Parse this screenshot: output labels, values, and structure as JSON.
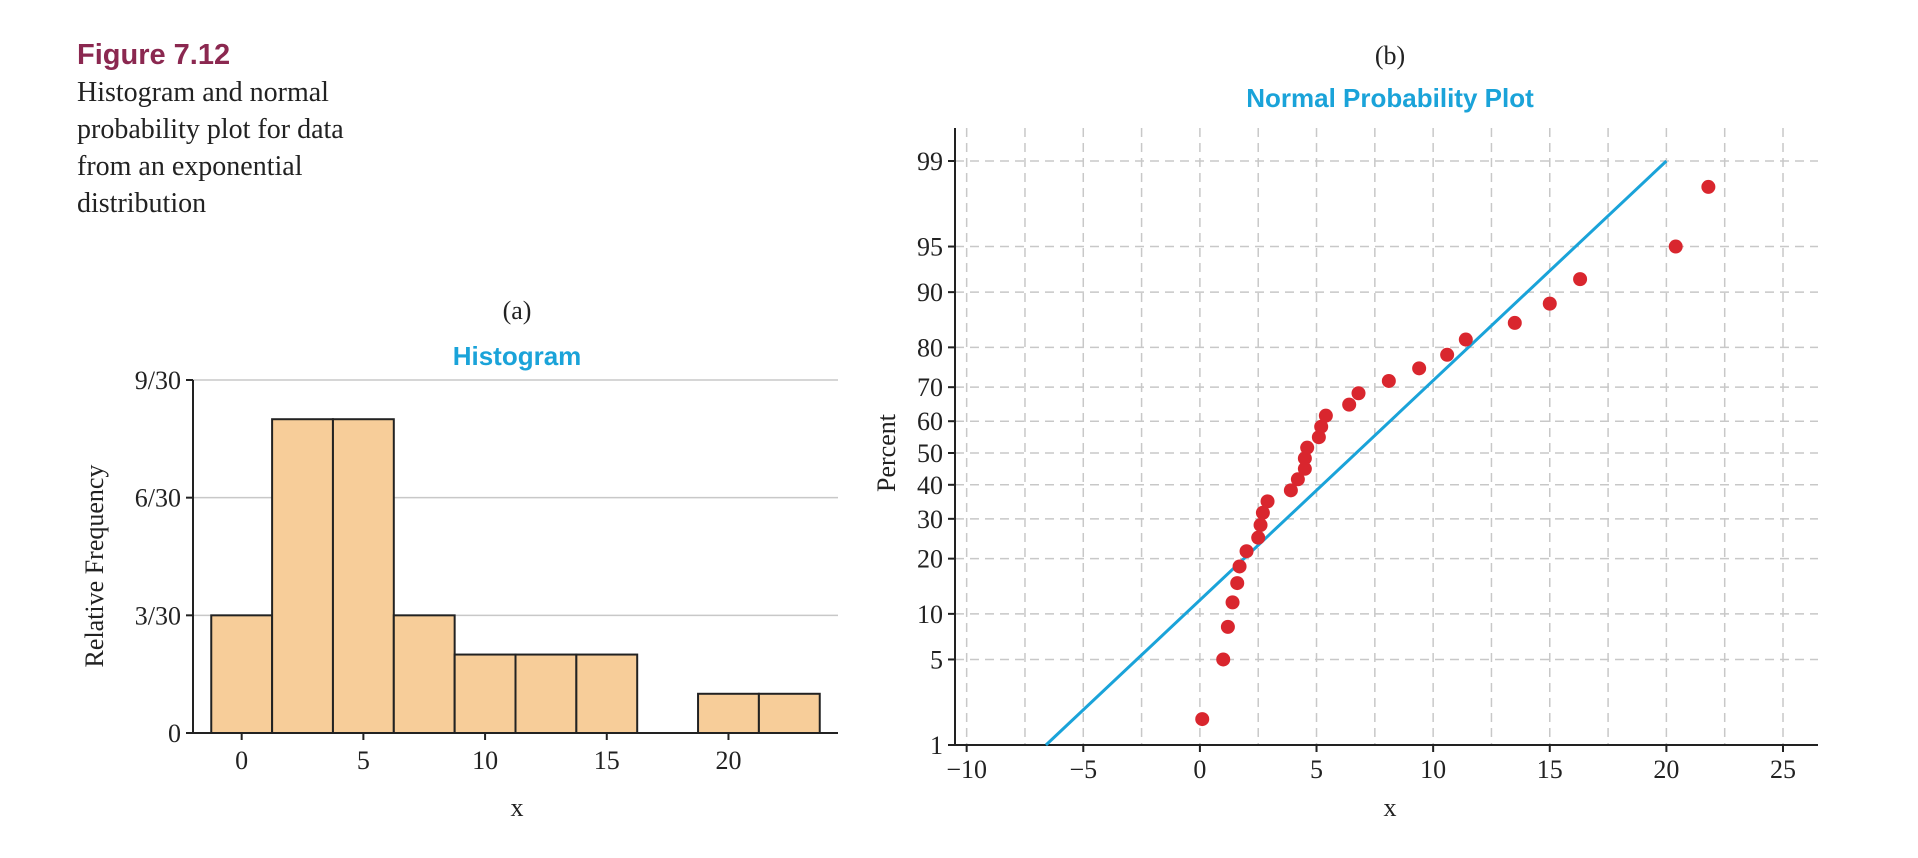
{
  "caption": {
    "label": "Figure 7.12",
    "text": "Histogram and normal probability plot for data from an exponential distribution"
  },
  "colors": {
    "caption_label": "#8b2850",
    "title": "#1aa3d9",
    "bar_fill": "#f7cd99",
    "bar_stroke": "#222222",
    "point": "#d9262e",
    "fit_line": "#1aa3d9",
    "grid": "#c8c8c8",
    "axis": "#222222"
  },
  "chart_data": [
    {
      "type": "bar",
      "panel_label": "(a)",
      "title": "Histogram",
      "xlabel": "x",
      "ylabel": "Relative Frequency",
      "bin_width": 2.5,
      "bins": [
        {
          "start": -1.25,
          "end": 1.25,
          "value": 0.1
        },
        {
          "start": 1.25,
          "end": 3.75,
          "value": 0.26667
        },
        {
          "start": 3.75,
          "end": 6.25,
          "value": 0.26667
        },
        {
          "start": 6.25,
          "end": 8.75,
          "value": 0.1
        },
        {
          "start": 8.75,
          "end": 11.25,
          "value": 0.06667
        },
        {
          "start": 11.25,
          "end": 13.75,
          "value": 0.06667
        },
        {
          "start": 13.75,
          "end": 16.25,
          "value": 0.06667
        },
        {
          "start": 16.25,
          "end": 18.75,
          "value": 0
        },
        {
          "start": 18.75,
          "end": 21.25,
          "value": 0.03333
        },
        {
          "start": 21.25,
          "end": 23.75,
          "value": 0.03333
        }
      ],
      "xlim": [
        -2,
        24.5
      ],
      "ylim": [
        0,
        0.3
      ],
      "x_ticks": [
        0,
        5,
        10,
        15,
        20
      ],
      "x_tick_labels": [
        "0",
        "5",
        "10",
        "15",
        "20"
      ],
      "y_ticks": [
        0,
        0.1,
        0.2,
        0.3
      ],
      "y_tick_labels": [
        "0",
        "3/30",
        "6/30",
        "9/30"
      ],
      "grid": "horizontal"
    },
    {
      "type": "scatter",
      "panel_label": "(b)",
      "title": "Normal Probability Plot",
      "xlabel": "x",
      "ylabel": "Percent",
      "scale_y": "normal-probability",
      "xlim": [
        -10.5,
        26.5
      ],
      "x_ticks": [
        -10,
        -5,
        0,
        5,
        10,
        15,
        20,
        25
      ],
      "x_tick_labels": [
        "−10",
        "−5",
        "0",
        "5",
        "10",
        "15",
        "20",
        "25"
      ],
      "y_ticks": [
        1,
        5,
        10,
        20,
        30,
        40,
        50,
        60,
        70,
        80,
        90,
        95,
        99
      ],
      "y_tick_labels": [
        "1",
        "5",
        "10",
        "20",
        "30",
        "40",
        "50",
        "60",
        "70",
        "80",
        "90",
        "95",
        "99"
      ],
      "grid": "dashed",
      "points": [
        {
          "x": 0.1,
          "y": 1.7
        },
        {
          "x": 1.0,
          "y": 5.0
        },
        {
          "x": 1.2,
          "y": 8.3
        },
        {
          "x": 1.4,
          "y": 11.7
        },
        {
          "x": 1.6,
          "y": 15.0
        },
        {
          "x": 1.7,
          "y": 18.3
        },
        {
          "x": 2.0,
          "y": 21.7
        },
        {
          "x": 2.5,
          "y": 25.0
        },
        {
          "x": 2.6,
          "y": 28.3
        },
        {
          "x": 2.7,
          "y": 31.7
        },
        {
          "x": 2.9,
          "y": 35.0
        },
        {
          "x": 3.9,
          "y": 38.3
        },
        {
          "x": 4.2,
          "y": 41.7
        },
        {
          "x": 4.5,
          "y": 45.0
        },
        {
          "x": 4.5,
          "y": 48.3
        },
        {
          "x": 4.6,
          "y": 51.7
        },
        {
          "x": 5.1,
          "y": 55.0
        },
        {
          "x": 5.2,
          "y": 58.3
        },
        {
          "x": 5.4,
          "y": 61.7
        },
        {
          "x": 6.4,
          "y": 65.0
        },
        {
          "x": 6.8,
          "y": 68.3
        },
        {
          "x": 8.1,
          "y": 71.7
        },
        {
          "x": 9.4,
          "y": 75.0
        },
        {
          "x": 10.6,
          "y": 78.3
        },
        {
          "x": 11.4,
          "y": 81.7
        },
        {
          "x": 13.5,
          "y": 85.0
        },
        {
          "x": 15.0,
          "y": 88.3
        },
        {
          "x": 16.3,
          "y": 91.7
        },
        {
          "x": 20.4,
          "y": 95.0
        },
        {
          "x": 21.8,
          "y": 98.3
        }
      ],
      "fit_line": {
        "x1": -6.6,
        "y1": 1,
        "x2": 20,
        "y2": 99
      }
    }
  ]
}
